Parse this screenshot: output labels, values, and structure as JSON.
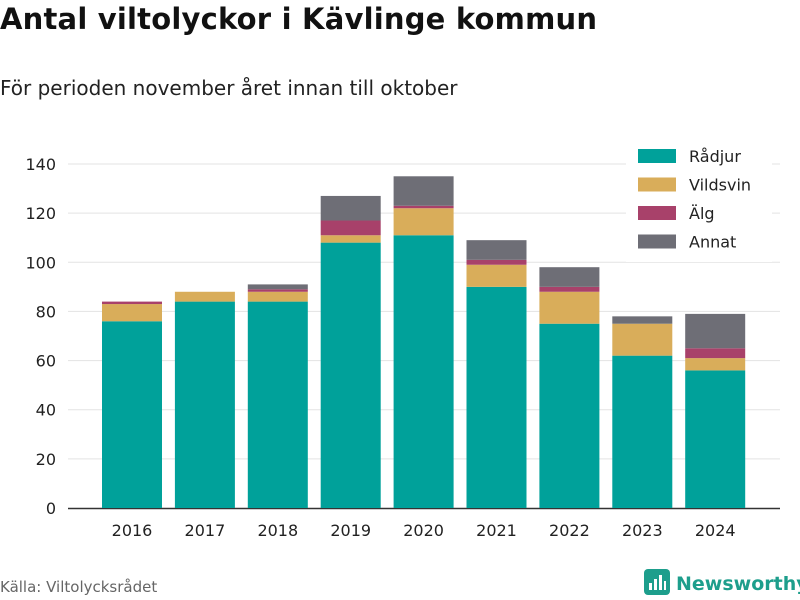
{
  "header": {
    "title": "Antal viltolyckor i Kävlinge kommun",
    "subtitle": "För perioden november året innan till oktober"
  },
  "footer": {
    "source": "Källa: Viltolycksrådet",
    "brand": "Newsworthy",
    "brand_icon": "bar-chart-logo-icon",
    "brand_color": "#1d9e8c"
  },
  "chart_data": {
    "type": "bar",
    "stacked": true,
    "categories": [
      "2016",
      "2017",
      "2018",
      "2019",
      "2020",
      "2021",
      "2022",
      "2023",
      "2024"
    ],
    "series": [
      {
        "name": "Rådjur",
        "color": "#00a19a",
        "values": [
          76,
          84,
          84,
          108,
          111,
          90,
          75,
          62,
          56
        ]
      },
      {
        "name": "Vildsvin",
        "color": "#d9ad5a",
        "values": [
          7,
          4,
          4,
          3,
          11,
          9,
          13,
          13,
          5
        ]
      },
      {
        "name": "Älg",
        "color": "#a8416a",
        "values": [
          1,
          0,
          1,
          6,
          1,
          2,
          2,
          0,
          4
        ]
      },
      {
        "name": "Annat",
        "color": "#6e6e76",
        "values": [
          0,
          0,
          2,
          10,
          12,
          8,
          8,
          3,
          14
        ]
      }
    ],
    "ylim": [
      0,
      140
    ],
    "yticks": [
      0,
      20,
      40,
      60,
      80,
      100,
      120,
      140
    ],
    "grid": true,
    "legend_position": "top-right",
    "xlabel": "",
    "ylabel": ""
  }
}
